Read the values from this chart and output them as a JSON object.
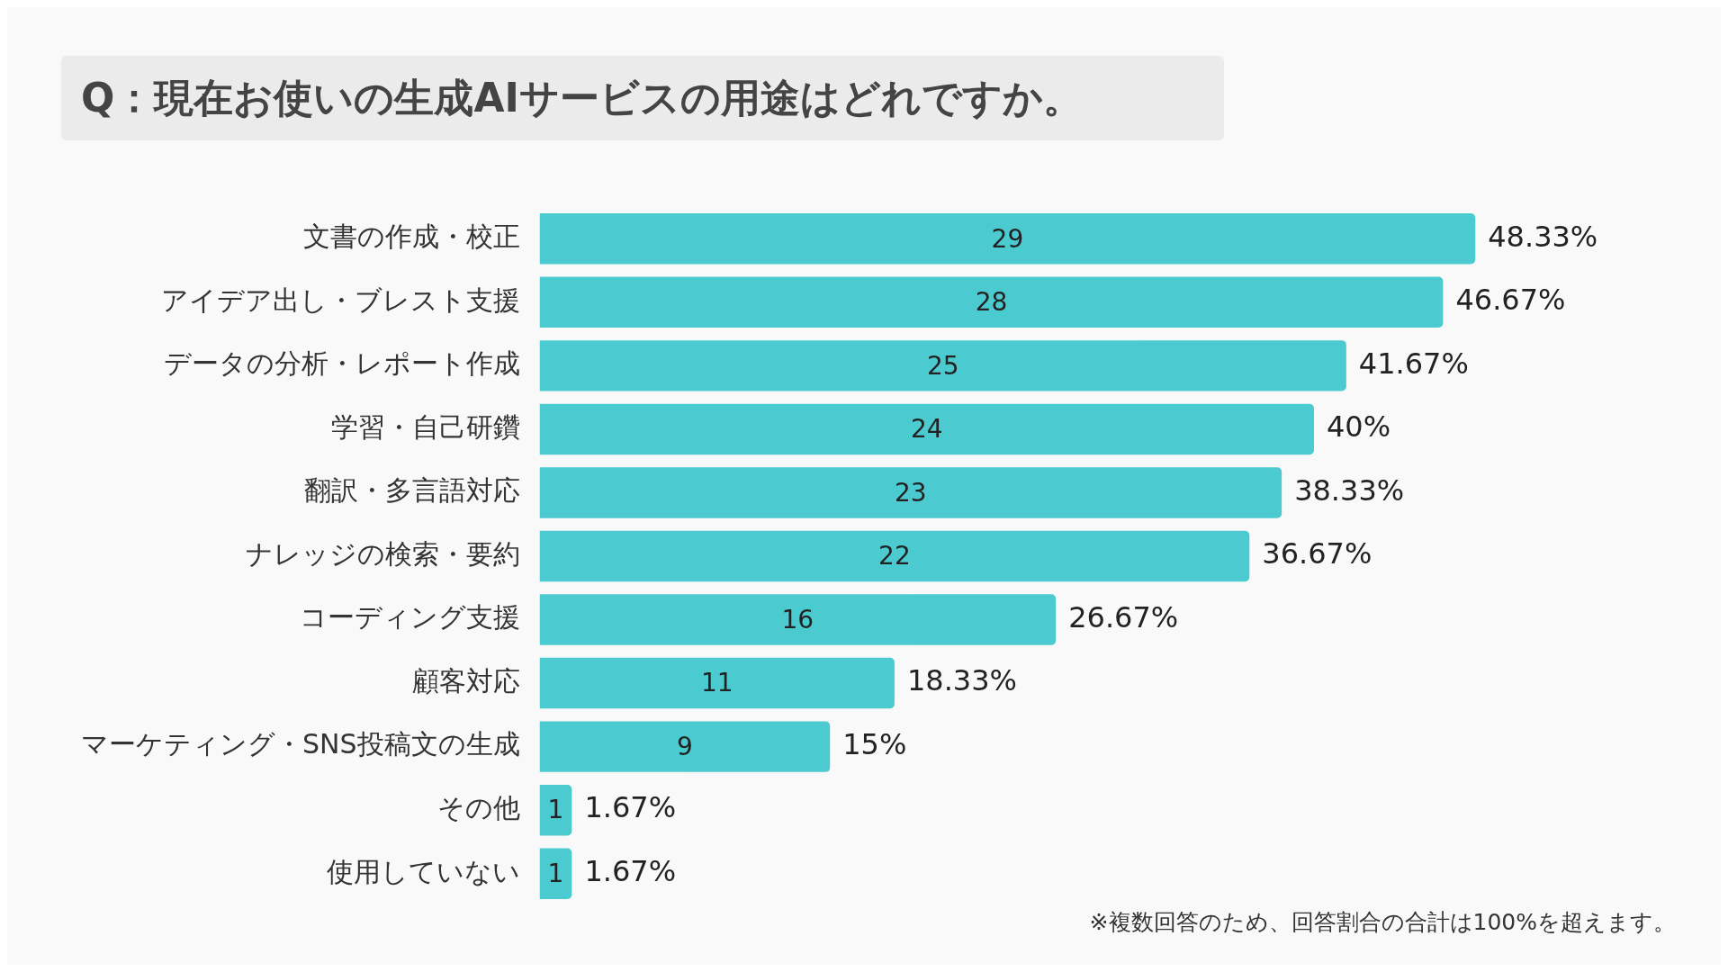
{
  "chart_data": {
    "type": "bar",
    "orientation": "horizontal",
    "title": "Q：現在お使いの生成AIサービスの用途はどれですか。",
    "categories": [
      "文書の作成・校正",
      "アイデア出し・ブレスト支援",
      "データの分析・レポート作成",
      "学習・自己研鑽",
      "翻訳・多言語対応",
      "ナレッジの検索・要約",
      "コーディング支援",
      "顧客対応",
      "マーケティング・SNS投稿文の生成",
      "その他",
      "使用していない"
    ],
    "values": [
      29,
      28,
      25,
      24,
      23,
      22,
      16,
      11,
      9,
      1,
      1
    ],
    "color": "#4bcbd0",
    "data_labels": true,
    "annotations": [
      {
        "text": "48.33%",
        "x": 29,
        "y": "文書の作成・校正"
      },
      {
        "text": "46.67%",
        "x": 28,
        "y": "アイデア出し・ブレスト支援"
      },
      {
        "text": "41.67%",
        "x": 25,
        "y": "データの分析・レポート作成"
      },
      {
        "text": "40%",
        "x": 24,
        "y": "学習・自己研鑽"
      },
      {
        "text": "38.33%",
        "x": 23,
        "y": "翻訳・多言語対応"
      },
      {
        "text": "36.67%",
        "x": 22,
        "y": "ナレッジの検索・要約"
      },
      {
        "text": "26.67%",
        "x": 16,
        "y": "コーディング支援"
      },
      {
        "text": "18.33%",
        "x": 11,
        "y": "顧客対応"
      },
      {
        "text": "15%",
        "x": 9,
        "y": "マーケティング・SNS投稿文の生成"
      },
      {
        "text": "1.67%",
        "x": 1,
        "y": "その他"
      },
      {
        "text": "1.67%",
        "x": 1,
        "y": "使用していない"
      },
      "※複数回答のため、回答割合の合計は100%を超えます。"
    ]
  }
}
